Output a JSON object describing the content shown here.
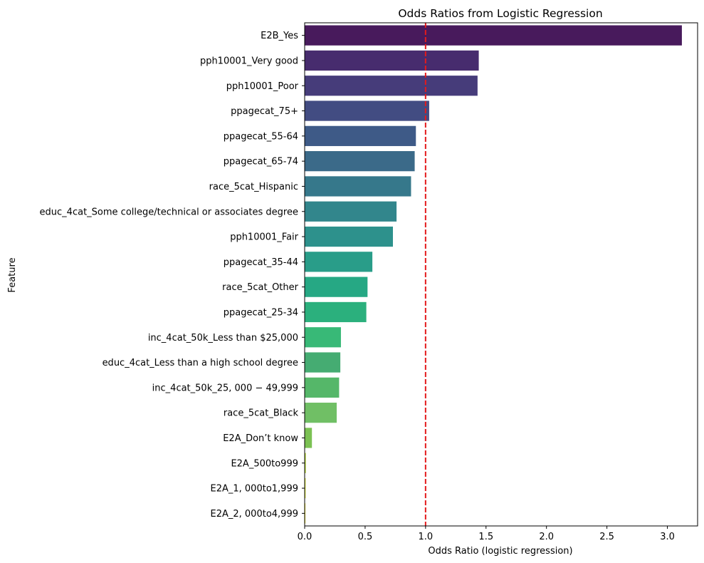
{
  "chart_data": {
    "type": "bar",
    "orientation": "horizontal",
    "title": "Odds Ratios from Logistic Regression",
    "xlabel": "Odds Ratio (logistic regression)",
    "ylabel": "Feature",
    "xlim": [
      0,
      3.25
    ],
    "xticks": [
      0.0,
      0.5,
      1.0,
      1.5,
      2.0,
      2.5,
      3.0
    ],
    "xtick_labels": [
      "0.0",
      "0.5",
      "1.0",
      "1.5",
      "2.0",
      "2.5",
      "3.0"
    ],
    "reference_line": {
      "x": 1.0,
      "color": "#e41a1c",
      "style": "dashed"
    },
    "palette": "viridis",
    "categories": [
      "E2B_Yes",
      "pph10001_Very good",
      "pph10001_Poor",
      "ppagecat_75+",
      "ppagecat_55-64",
      "ppagecat_65-74",
      "race_5cat_Hispanic",
      "educ_4cat_Some college/technical or associates degree",
      "pph10001_Fair",
      "ppagecat_35-44",
      "race_5cat_Other",
      "ppagecat_25-34",
      "inc_4cat_50k_Less than $25,000",
      "educ_4cat_Less than a high school degree",
      "inc_4cat_50k_25, 000 − 49,999",
      "race_5cat_Black",
      "E2A_Don’t know",
      "E2A_500to999",
      "E2A_1, 000to1,999",
      "E2A_2, 000to4,999"
    ],
    "values": [
      3.12,
      1.44,
      1.43,
      1.03,
      0.92,
      0.91,
      0.88,
      0.76,
      0.73,
      0.56,
      0.52,
      0.51,
      0.3,
      0.295,
      0.285,
      0.265,
      0.06,
      0.01,
      0.008,
      0.006
    ],
    "colors": [
      "#481a5c",
      "#472c6e",
      "#463c7a",
      "#424c82",
      "#3e5a87",
      "#3b6a89",
      "#36788b",
      "#32868c",
      "#2d918c",
      "#299d89",
      "#26a884",
      "#2bb07d",
      "#38b977",
      "#45ac72",
      "#55b769",
      "#70bf65",
      "#7bc153",
      "#b4d33b",
      "#d6df33",
      "#efe51c"
    ]
  }
}
